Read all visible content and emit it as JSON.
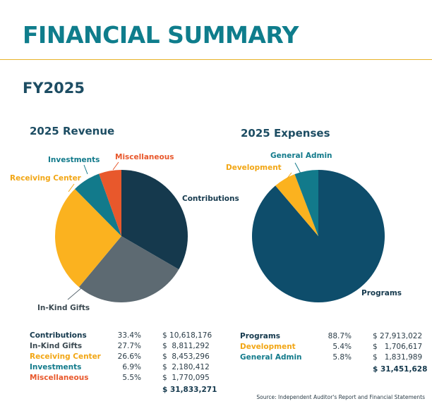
{
  "header": {
    "title": "FINANCIAL SUMMARY",
    "fiscal_year": "FY2025"
  },
  "colors": {
    "contributions": "#15394d",
    "in_kind_gifts": "#5d6a72",
    "receiving_center": "#fbb21f",
    "investments": "#127a8b",
    "miscellaneous": "#e8582c",
    "programs": "#0e4d6b",
    "development": "#fbb21f",
    "general_admin": "#127a8b"
  },
  "chart_data": [
    {
      "type": "pie",
      "title": "2025 Revenue",
      "labels": [
        "Contributions",
        "In-Kind Gifts",
        "Receiving Center",
        "Investments",
        "Miscellaneous"
      ],
      "values": [
        33.4,
        27.7,
        26.6,
        6.9,
        5.5
      ],
      "colors": [
        "#15394d",
        "#5d6a72",
        "#fbb21f",
        "#127a8b",
        "#e8582c"
      ]
    },
    {
      "type": "pie",
      "title": "2025 Expenses",
      "labels": [
        "Programs",
        "Development",
        "General Admin"
      ],
      "values": [
        88.7,
        5.4,
        5.8
      ],
      "colors": [
        "#0e4d6b",
        "#fbb21f",
        "#127a8b"
      ]
    }
  ],
  "revenue_table": {
    "rows": [
      {
        "name": "Contributions",
        "pct": "33.4%",
        "amount": "$ 10,618,176",
        "color": "#15394d"
      },
      {
        "name": "In-Kind Gifts",
        "pct": "27.7%",
        "amount": "$  8,811,292",
        "color": "#3c4a52"
      },
      {
        "name": "Receiving Center",
        "pct": "26.6%",
        "amount": "$  8,453,296",
        "color": "#f2a614"
      },
      {
        "name": "Investments",
        "pct": "6.9%",
        "amount": "$  2,180,412",
        "color": "#127a8b"
      },
      {
        "name": "Miscellaneous",
        "pct": "5.5%",
        "amount": "$  1,770,095",
        "color": "#e8582c"
      }
    ],
    "total": "$ 31,833,271"
  },
  "expenses_table": {
    "rows": [
      {
        "name": "Programs",
        "pct": "88.7%",
        "amount": "$ 27,913,022",
        "color": "#15394d"
      },
      {
        "name": "Development",
        "pct": "5.4%",
        "amount": "$   1,706,617",
        "color": "#f2a614"
      },
      {
        "name": "General Admin",
        "pct": "5.8%",
        "amount": "$   1,831,989",
        "color": "#127a8b"
      }
    ],
    "total": "$ 31,451,628"
  },
  "source": "Source: Independent Auditor's Report and Financial Statements"
}
